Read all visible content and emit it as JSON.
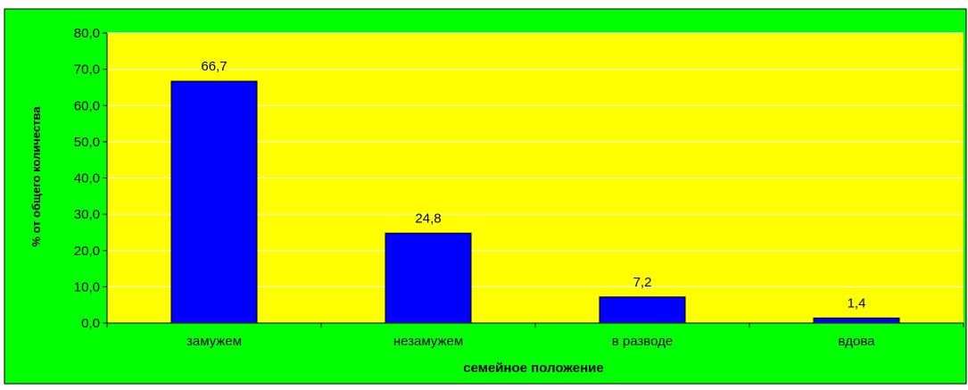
{
  "colors": {
    "chart_background": "#00ff00",
    "plot_background": "#ffff00",
    "bar_fill": "#0000ff",
    "gridline": "#ffffff",
    "axis": "#000000"
  },
  "chart_data": {
    "type": "bar",
    "title": "",
    "xlabel": "семейное положение",
    "ylabel": "% от общего количества",
    "categories": [
      "замужем",
      "незамужем",
      "в разводе",
      "вдова"
    ],
    "values": [
      66.7,
      24.8,
      7.2,
      1.4
    ],
    "value_labels": [
      "66,7",
      "24,8",
      "7,2",
      "1,4"
    ],
    "ylim": [
      0,
      80
    ],
    "yticks": [
      0,
      10,
      20,
      30,
      40,
      50,
      60,
      70,
      80
    ],
    "ytick_labels": [
      "0,0",
      "10,0",
      "20,0",
      "30,0",
      "40,0",
      "50,0",
      "60,0",
      "70,0",
      "80,0"
    ],
    "grid": true,
    "legend": false
  }
}
